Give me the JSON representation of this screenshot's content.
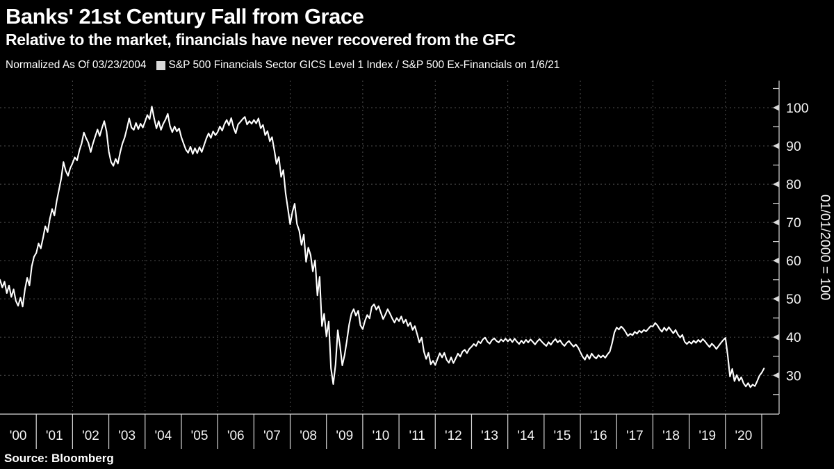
{
  "header": {
    "title": "Banks' 21st Century Fall from Grace",
    "subtitle": "Relative to the market, financials have never recovered from the GFC"
  },
  "legend": {
    "normalized_label": "Normalized As Of 03/23/2004",
    "series_label": "S&P 500 Financials Sector GICS Level 1 Index / S&P 500 Ex-Financials on 1/6/21"
  },
  "footer": {
    "source": "Source: Bloomberg"
  },
  "colors": {
    "background": "#000000",
    "line": "#ffffff",
    "grid": "#505050",
    "axis": "#d9d9d9",
    "text": "#f5f5f5",
    "legend_marker": "#d9d9d9"
  },
  "chart_data": {
    "type": "line",
    "title": "Banks' 21st Century Fall from Grace",
    "subtitle": "Relative to the market, financials have never recovered from the GFC",
    "source": "Source: Bloomberg",
    "x_axis": {
      "tick_labels": [
        "'00",
        "'01",
        "'02",
        "'03",
        "'04",
        "'05",
        "'06",
        "'07",
        "'08",
        "'09",
        "'10",
        "'11",
        "'12",
        "'13",
        "'14",
        "'15",
        "'16",
        "'17",
        "'18",
        "'19",
        "'20"
      ],
      "range_years": [
        2000,
        2021.47
      ],
      "gridline_years": [
        2002,
        2004,
        2006,
        2008,
        2010,
        2012,
        2014,
        2016,
        2018,
        2020
      ],
      "grid": true
    },
    "y_axis": {
      "label": "01/01/2000 = 100",
      "ticks": [
        30,
        40,
        50,
        60,
        70,
        80,
        90,
        100
      ],
      "minor_tick_step": 5,
      "range": [
        19.9,
        107.1
      ],
      "position": "right",
      "grid": true
    },
    "series": [
      {
        "name": "S&P 500 Financials Sector GICS Level 1 Index / S&P 500 Ex-Financials on 1/6/21",
        "color": "#ffffff",
        "start_year": 2000,
        "samples_per_year": 16,
        "values": [
          55,
          53,
          54.5,
          51.5,
          53.5,
          50.5,
          52.5,
          49.5,
          48.2,
          50.3,
          48,
          52.5,
          55.5,
          53.5,
          58.5,
          61,
          62,
          64.5,
          63.2,
          66,
          69,
          67.5,
          71,
          73.5,
          71.8,
          75.5,
          78.5,
          81.5,
          85.8,
          83.5,
          82.2,
          84.2,
          85.5,
          87,
          86.2,
          88.8,
          90.6,
          93.5,
          92,
          90.8,
          88.4,
          90.6,
          92.5,
          94.3,
          92.6,
          94.7,
          96.5,
          93.8,
          88.5,
          85.8,
          84.8,
          86.6,
          85.4,
          88.3,
          90.6,
          92.2,
          94.6,
          97.2,
          94.8,
          94.2,
          96,
          94.4,
          95.8,
          94.8,
          96.4,
          98.1,
          97,
          100.3,
          97.2,
          94.6,
          96.5,
          94.2,
          95.8,
          96.9,
          98.4,
          95.2,
          93.6,
          95.1,
          93.8,
          94.6,
          92.3,
          90.6,
          89,
          88.2,
          89.8,
          87.9,
          89.4,
          88.1,
          89.7,
          88.4,
          90.2,
          91.9,
          93.3,
          92.1,
          93.8,
          92.8,
          93.6,
          95.1,
          94,
          95.7,
          96.8,
          95.4,
          97.3,
          94.8,
          93.3,
          95.6,
          96.3,
          97,
          97.6,
          95.6,
          96.5,
          95.8,
          96.8,
          95.9,
          97.2,
          94.6,
          95.5,
          92.8,
          93.9,
          91.2,
          92.3,
          88.9,
          85.3,
          87.1,
          81.9,
          83.7,
          77.6,
          73.5,
          69.5,
          72.8,
          74.9,
          69.6,
          67.8,
          64.1,
          66.8,
          59.7,
          63.4,
          61.5,
          57.2,
          60.1,
          50.9,
          55.8,
          42.9,
          46.1,
          40.2,
          44.1,
          31.9,
          27.7,
          32.8,
          41.8,
          37.6,
          32.6,
          35.3,
          39.1,
          43.2,
          46.1,
          47.3,
          45.6,
          46.9,
          43.1,
          42.1,
          44.3,
          45.8,
          44.9,
          47.9,
          48.6,
          47.2,
          48.1,
          46.4,
          44.7,
          45.9,
          47.3,
          46.2,
          44.9,
          43.8,
          45,
          44.2,
          45.4,
          43.7,
          44.6,
          42.9,
          43.8,
          41.9,
          42.9,
          40.8,
          38.6,
          39.9,
          36.2,
          34.3,
          35.9,
          32.9,
          33.8,
          32.7,
          34.3,
          35.8,
          34.7,
          35.9,
          34.1,
          33.3,
          34.7,
          33.2,
          34.4,
          35.7,
          34.9,
          36.2,
          36.7,
          35.8,
          36.9,
          37.5,
          38.2,
          37.7,
          38.9,
          38.4,
          39.4,
          39.9,
          38.8,
          38.3,
          39.2,
          39.7,
          39,
          38.6,
          39.4,
          38.9,
          39.6,
          38.9,
          39.5,
          38.7,
          39.6,
          38.8,
          38.2,
          39.1,
          38.4,
          39.3,
          38.6,
          39.4,
          38.8,
          38.1,
          38.9,
          39.5,
          38.8,
          38.2,
          37.7,
          38.7,
          38,
          38.9,
          39.5,
          38.6,
          39.2,
          38.3,
          37.7,
          38.5,
          39,
          38.2,
          37.5,
          38.1,
          37.3,
          36.1,
          34.9,
          34.1,
          35.4,
          34.3,
          35.7,
          34.9,
          34.4,
          35.3,
          34.7,
          35.2,
          34.6,
          35.5,
          36.2,
          38.4,
          41.2,
          42.5,
          42,
          42.8,
          42.2,
          41.3,
          40.3,
          40.9,
          40.5,
          41.4,
          40.9,
          41.7,
          41.2,
          41.9,
          41.5,
          42.2,
          42.9,
          42.8,
          43.7,
          43.1,
          42.1,
          41.4,
          42.5,
          41.7,
          42.6,
          41.8,
          41,
          41.9,
          40.7,
          39.9,
          40.6,
          38.8,
          38.2,
          38.8,
          38.3,
          39.1,
          38.5,
          39.3,
          38.7,
          39.5,
          38.9,
          38.1,
          37.4,
          38.3,
          37.7,
          36.9,
          37.7,
          38.5,
          39.2,
          39.8,
          35.2,
          29.7,
          31.7,
          28.5,
          30.1,
          28.6,
          29.5,
          27.9,
          27.1,
          28,
          26.9,
          27.6,
          27.2,
          28.5,
          29.9,
          30.7,
          31.8
        ]
      }
    ]
  }
}
